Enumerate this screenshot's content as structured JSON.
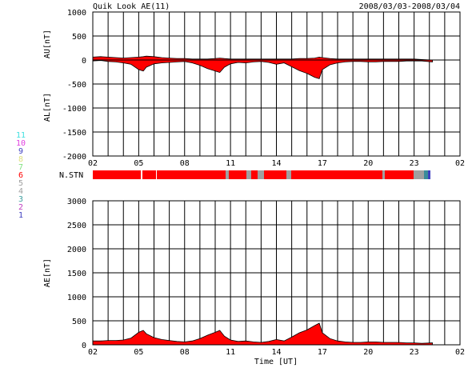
{
  "header": {
    "title": "Quik Look AE(11)",
    "date_range": "2008/03/03-2008/03/04"
  },
  "colors": {
    "frame": "#000000",
    "fill_main": "#ff0000",
    "fill_grey": "#a0a0a0",
    "fill_teal": "#3a8c9a"
  },
  "station_legend": [
    {
      "label": "11",
      "color": "#40e0e0"
    },
    {
      "label": "10",
      "color": "#e040e0"
    },
    {
      "label": "9",
      "color": "#4040c0"
    },
    {
      "label": "8",
      "color": "#e0e080"
    },
    {
      "label": "7",
      "color": "#80e080"
    },
    {
      "label": "6",
      "color": "#ff0000"
    },
    {
      "label": "5",
      "color": "#a0a0a0"
    },
    {
      "label": "4",
      "color": "#a0a0a0"
    },
    {
      "label": "3",
      "color": "#40a0a0"
    },
    {
      "label": "2",
      "color": "#c040c0"
    },
    {
      "label": "1",
      "color": "#4040c0"
    }
  ],
  "nstn_label": "N.STN",
  "chart_data": [
    {
      "type": "area",
      "panel": "AU/AL",
      "ylabel_top": "AU[nT]",
      "ylabel_bottom": "AL[nT]",
      "ylim": [
        -2000,
        1000
      ],
      "yticks": [
        1000,
        500,
        0,
        -500,
        -1000,
        -1500,
        -2000
      ],
      "xticks": [
        "02",
        "05",
        "08",
        "11",
        "14",
        "17",
        "20",
        "23",
        "02"
      ],
      "x_hours": [
        2,
        2.5,
        3,
        3.5,
        4,
        4.5,
        5,
        5.3,
        5.5,
        6,
        6.5,
        7,
        7.5,
        8,
        8.5,
        9,
        9.5,
        10,
        10.3,
        10.6,
        11,
        11.5,
        12,
        12.5,
        13,
        13.5,
        14,
        14.5,
        15,
        15.5,
        16,
        16.5,
        16.8,
        17,
        17.5,
        18,
        18.5,
        19,
        19.5,
        20,
        20.5,
        21,
        21.5,
        22,
        22.5,
        23,
        23.5,
        24.2
      ],
      "series": [
        {
          "name": "AU",
          "values": [
            60,
            70,
            60,
            50,
            40,
            50,
            60,
            70,
            80,
            70,
            50,
            40,
            30,
            30,
            20,
            20,
            20,
            30,
            40,
            30,
            20,
            20,
            20,
            20,
            20,
            20,
            20,
            20,
            20,
            30,
            30,
            40,
            60,
            50,
            30,
            20,
            20,
            20,
            20,
            20,
            20,
            20,
            20,
            20,
            20,
            20,
            10,
            0
          ]
        },
        {
          "name": "AL",
          "values": [
            -20,
            -10,
            -30,
            -40,
            -60,
            -90,
            -200,
            -230,
            -150,
            -80,
            -60,
            -50,
            -40,
            -30,
            -60,
            -110,
            -180,
            -230,
            -260,
            -150,
            -80,
            -50,
            -60,
            -40,
            -30,
            -50,
            -90,
            -60,
            -140,
            -220,
            -280,
            -360,
            -390,
            -200,
            -100,
            -60,
            -40,
            -30,
            -30,
            -40,
            -40,
            -30,
            -30,
            -30,
            -20,
            -20,
            -20,
            -40
          ]
        }
      ]
    },
    {
      "type": "area",
      "panel": "AE",
      "ylabel": "AE[nT]",
      "xlabel": "Time [UT]",
      "ylim": [
        0,
        3000
      ],
      "yticks": [
        3000,
        2500,
        2000,
        1500,
        1000,
        500,
        0
      ],
      "xticks": [
        "02",
        "05",
        "08",
        "11",
        "14",
        "17",
        "20",
        "23",
        "02"
      ],
      "x_hours": [
        2,
        2.5,
        3,
        3.5,
        4,
        4.5,
        5,
        5.3,
        5.5,
        6,
        6.5,
        7,
        7.5,
        8,
        8.5,
        9,
        9.5,
        10,
        10.3,
        10.6,
        11,
        11.5,
        12,
        12.5,
        13,
        13.5,
        14,
        14.5,
        15,
        15.5,
        16,
        16.5,
        16.8,
        17,
        17.5,
        18,
        18.5,
        19,
        19.5,
        20,
        20.5,
        21,
        21.5,
        22,
        22.5,
        23,
        23.5,
        24.2
      ],
      "series": [
        {
          "name": "AE",
          "values": [
            80,
            80,
            90,
            90,
            100,
            140,
            260,
            300,
            230,
            150,
            110,
            90,
            70,
            60,
            80,
            130,
            200,
            260,
            300,
            180,
            100,
            70,
            80,
            60,
            50,
            70,
            110,
            80,
            160,
            250,
            310,
            400,
            450,
            250,
            130,
            80,
            60,
            50,
            50,
            60,
            60,
            50,
            50,
            50,
            40,
            40,
            30,
            40
          ]
        }
      ]
    }
  ]
}
